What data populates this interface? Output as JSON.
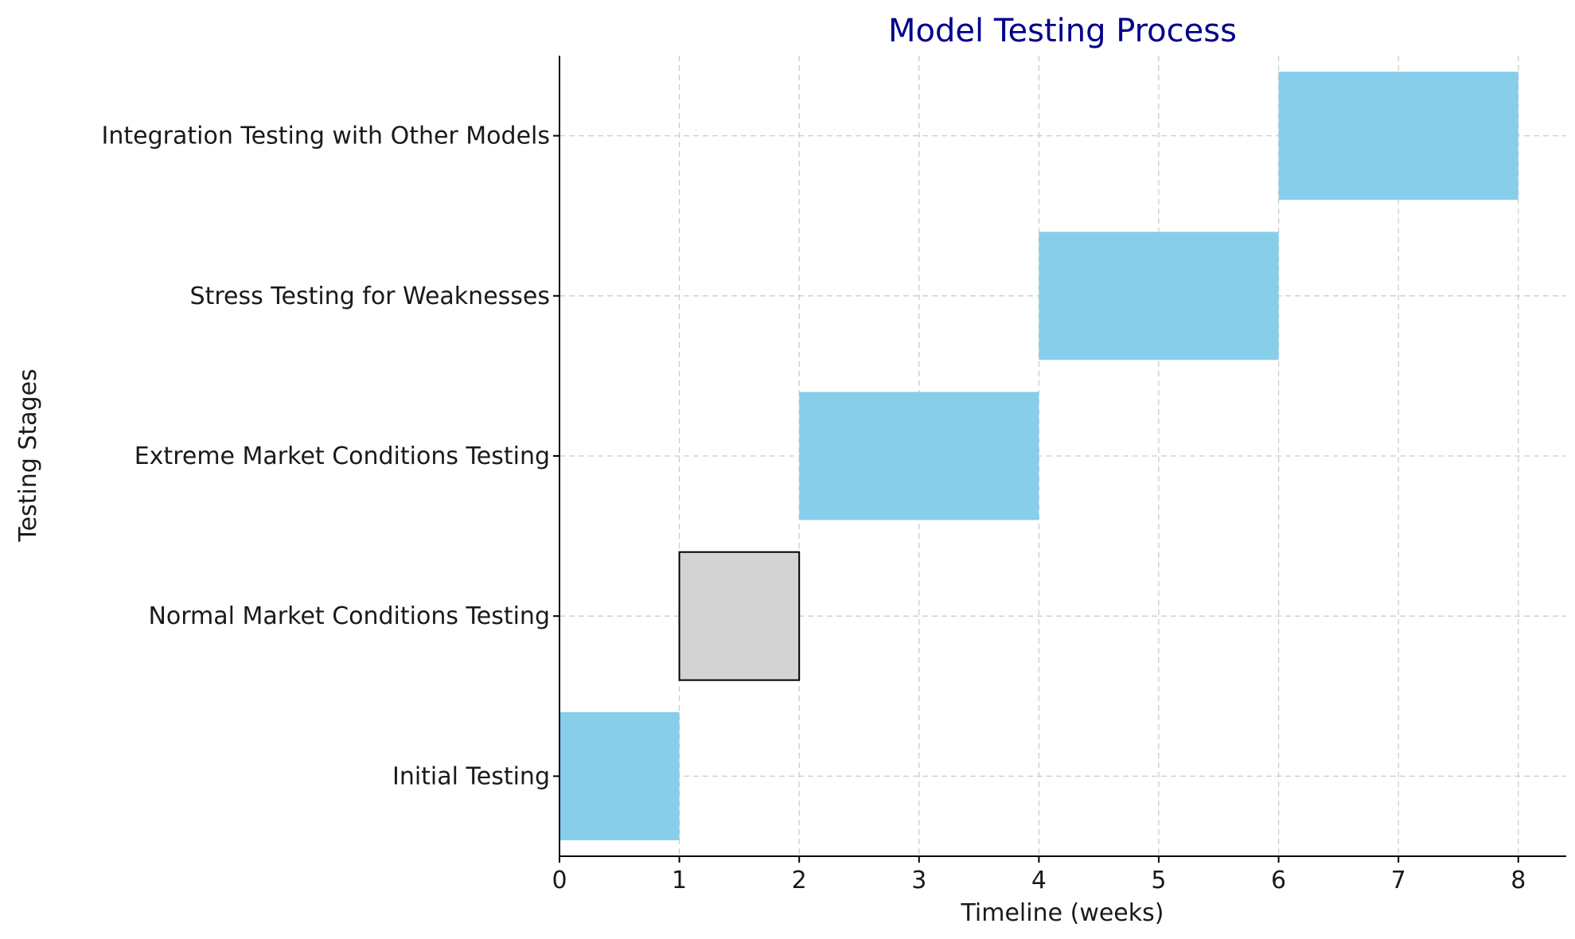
{
  "chart_data": {
    "type": "bar",
    "orientation": "horizontal",
    "title": "Model Testing Process",
    "xlabel": "Timeline (weeks)",
    "ylabel": "Testing Stages",
    "xlim": [
      0,
      8.4
    ],
    "xticks": [
      0,
      1,
      2,
      3,
      4,
      5,
      6,
      7,
      8
    ],
    "grid": true,
    "categories": [
      "Initial Testing",
      "Normal Market Conditions Testing",
      "Extreme Market Conditions Testing",
      "Stress Testing for Weaknesses",
      "Integration Testing with Other Models"
    ],
    "tasks": [
      {
        "label": "Initial Testing",
        "start": 0,
        "duration": 1,
        "color": "#87ceeb",
        "highlighted": false
      },
      {
        "label": "Normal Market Conditions Testing",
        "start": 1,
        "duration": 1,
        "color": "#d3d3d3",
        "highlighted": true
      },
      {
        "label": "Extreme Market Conditions Testing",
        "start": 2,
        "duration": 2,
        "color": "#87ceeb",
        "highlighted": false
      },
      {
        "label": "Stress Testing for Weaknesses",
        "start": 4,
        "duration": 2,
        "color": "#87ceeb",
        "highlighted": false
      },
      {
        "label": "Integration Testing with Other Models",
        "start": 6,
        "duration": 2,
        "color": "#87ceeb",
        "highlighted": false
      }
    ],
    "colors": {
      "title": "#00008b",
      "default_bar": "#87ceeb",
      "highlight_bar": "#d3d3d3",
      "highlight_edge": "#000000"
    }
  }
}
